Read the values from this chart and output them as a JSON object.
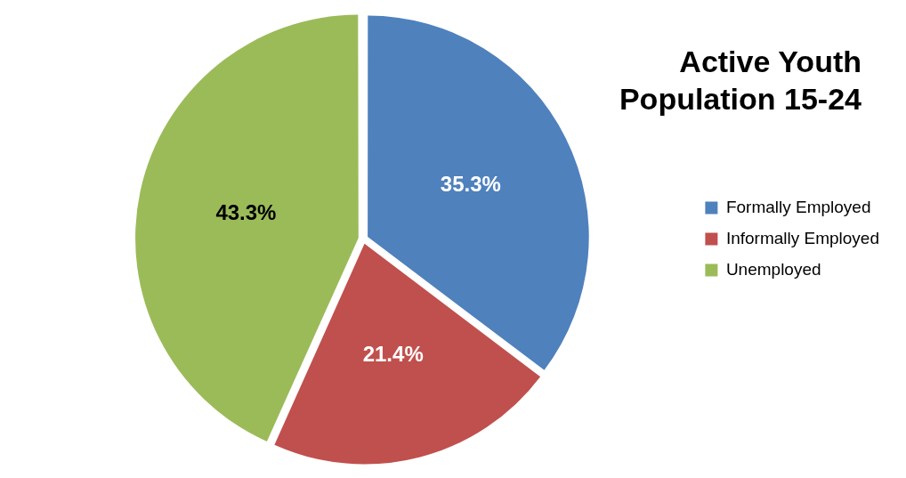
{
  "chart_data": {
    "type": "pie",
    "title": "Active Youth Population 15-24",
    "categories": [
      "Formally Employed",
      "Informally Employed",
      "Unemployed"
    ],
    "values": [
      35.3,
      21.4,
      43.3
    ],
    "colors": [
      "#4f81bd",
      "#c0504d",
      "#9bbb59"
    ],
    "value_labels": [
      "35.3%",
      "21.4%",
      "43.3%"
    ],
    "legend": "right"
  }
}
